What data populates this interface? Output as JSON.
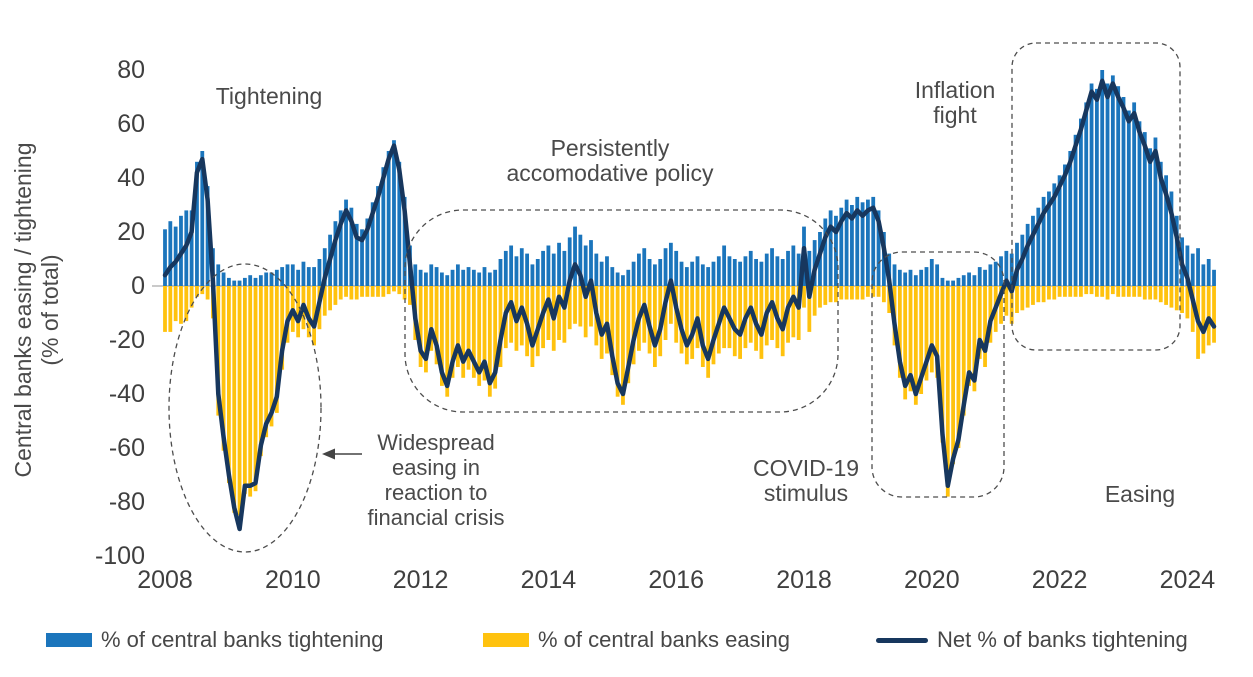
{
  "chart": {
    "y_axis": {
      "title_line1": "Central banks easing / tightening",
      "title_line2": "(% of total)",
      "ticks": [
        80,
        60,
        40,
        20,
        0,
        -20,
        -40,
        -60,
        -80,
        -100
      ]
    },
    "x_axis": {
      "ticks": [
        2008,
        2010,
        2012,
        2014,
        2016,
        2018,
        2020,
        2022,
        2024
      ]
    },
    "annotations": {
      "tightening": "Tightening",
      "accommodative": "Persistently\naccomodative policy",
      "financial_crisis": "Widespread\neasing in\nreaction to\nfinancial crisis",
      "covid": "COVID-19\nstimulus",
      "inflation": "Inflation\nfight",
      "easing": "Easing"
    }
  },
  "legend": [
    {
      "label": "% of central banks tightening",
      "color": "#1B75BC",
      "type": "bar"
    },
    {
      "label": "% of central banks easing",
      "color": "#FFC20E",
      "type": "bar"
    },
    {
      "label": "Net % of banks tightening",
      "color": "#17375E",
      "type": "line"
    }
  ],
  "chart_data": {
    "type": "bar",
    "subtype": "monthly bars with net line overlay",
    "x_start": "2008-01",
    "x_end": "2024-06",
    "x_frequency": "monthly",
    "ylim": [
      -100,
      80
    ],
    "grid": "zero-line only",
    "legend_position": "bottom",
    "series": [
      {
        "name": "% of central banks tightening",
        "type": "bar",
        "color": "#1B75BC",
        "values": [
          21,
          24,
          22,
          26,
          28,
          28,
          46,
          50,
          37,
          14,
          8,
          5,
          3,
          2,
          2,
          3,
          4,
          3,
          4,
          5,
          5,
          6,
          7,
          8,
          8,
          6,
          9,
          7,
          7,
          10,
          14,
          19,
          24,
          28,
          32,
          29,
          23,
          21,
          25,
          31,
          37,
          44,
          50,
          54,
          46,
          33,
          15,
          8,
          6,
          5,
          8,
          7,
          5,
          4,
          6,
          8,
          6,
          7,
          6,
          5,
          7,
          5,
          6,
          10,
          13,
          15,
          11,
          14,
          12,
          8,
          10,
          13,
          15,
          12,
          16,
          13,
          18,
          22,
          19,
          15,
          17,
          12,
          9,
          11,
          7,
          5,
          4,
          6,
          9,
          12,
          14,
          10,
          8,
          10,
          14,
          16,
          13,
          9,
          7,
          9,
          11,
          8,
          7,
          9,
          11,
          15,
          11,
          10,
          9,
          11,
          13,
          10,
          9,
          12,
          14,
          11,
          10,
          13,
          15,
          12,
          22,
          13,
          17,
          20,
          25,
          28,
          26,
          29,
          32,
          30,
          33,
          31,
          32,
          33,
          28,
          20,
          12,
          8,
          6,
          5,
          6,
          4,
          6,
          7,
          10,
          8,
          3,
          2,
          2,
          3,
          4,
          5,
          4,
          7,
          6,
          8,
          9,
          11,
          13,
          12,
          16,
          19,
          23,
          26,
          29,
          33,
          35,
          38,
          41,
          45,
          50,
          56,
          62,
          68,
          75,
          73,
          80,
          75,
          78,
          74,
          70,
          65,
          68,
          61,
          57,
          51,
          55,
          46,
          41,
          35,
          26,
          18,
          15,
          12,
          14,
          8,
          10,
          6
        ]
      },
      {
        "name": "% of central banks easing",
        "type": "bar",
        "color": "#FFC20E",
        "values": [
          -17,
          -17,
          -13,
          -14,
          -13,
          -8,
          -4,
          -3,
          -5,
          -12,
          -48,
          -61,
          -73,
          -84,
          -85,
          -77,
          -78,
          -76,
          -63,
          -56,
          -52,
          -47,
          -31,
          -21,
          -17,
          -19,
          -16,
          -19,
          -22,
          -16,
          -11,
          -9,
          -7,
          -5,
          -4,
          -5,
          -5,
          -4,
          -4,
          -4,
          -4,
          -4,
          -3,
          -2,
          -3,
          -5,
          -7,
          -20,
          -30,
          -32,
          -24,
          -29,
          -37,
          -41,
          -34,
          -30,
          -34,
          -31,
          -34,
          -37,
          -35,
          -41,
          -38,
          -30,
          -23,
          -21,
          -24,
          -22,
          -26,
          -30,
          -26,
          -23,
          -20,
          -24,
          -20,
          -21,
          -16,
          -14,
          -15,
          -19,
          -15,
          -22,
          -27,
          -25,
          -33,
          -41,
          -44,
          -36,
          -29,
          -24,
          -21,
          -25,
          -30,
          -26,
          -20,
          -14,
          -21,
          -25,
          -29,
          -27,
          -23,
          -30,
          -34,
          -29,
          -25,
          -23,
          -23,
          -26,
          -27,
          -23,
          -21,
          -24,
          -27,
          -22,
          -20,
          -23,
          -26,
          -21,
          -19,
          -20,
          -8,
          -17,
          -11,
          -8,
          -7,
          -6,
          -6,
          -5,
          -5,
          -5,
          -5,
          -5,
          -4,
          -4,
          -4,
          -6,
          -10,
          -22,
          -34,
          -42,
          -39,
          -44,
          -40,
          -35,
          -32,
          -34,
          -58,
          -78,
          -66,
          -60,
          -48,
          -37,
          -39,
          -27,
          -30,
          -21,
          -17,
          -14,
          -11,
          -14,
          -10,
          -9,
          -8,
          -7,
          -6,
          -6,
          -5,
          -5,
          -4,
          -4,
          -4,
          -4,
          -4,
          -3,
          -3,
          -4,
          -4,
          -5,
          -3,
          -4,
          -4,
          -4,
          -4,
          -4,
          -5,
          -5,
          -5,
          -6,
          -7,
          -8,
          -9,
          -10,
          -12,
          -17,
          -27,
          -25,
          -22,
          -21
        ]
      },
      {
        "name": "Net % of banks tightening",
        "type": "line",
        "color": "#17375E",
        "values": [
          4,
          7,
          9,
          12,
          15,
          20,
          42,
          47,
          32,
          2,
          -40,
          -56,
          -70,
          -82,
          -90,
          -74,
          -74,
          -73,
          -59,
          -51,
          -47,
          -41,
          -24,
          -13,
          -9,
          -13,
          -7,
          -12,
          -15,
          -6,
          3,
          10,
          17,
          23,
          28,
          24,
          18,
          17,
          21,
          27,
          33,
          40,
          47,
          52,
          43,
          28,
          8,
          -12,
          -24,
          -27,
          -16,
          -22,
          -32,
          -37,
          -28,
          -22,
          -28,
          -24,
          -28,
          -32,
          -28,
          -36,
          -32,
          -20,
          -10,
          -6,
          -13,
          -8,
          -14,
          -22,
          -16,
          -10,
          -5,
          -12,
          -4,
          -8,
          2,
          8,
          4,
          -4,
          2,
          -10,
          -18,
          -14,
          -26,
          -36,
          -40,
          -30,
          -20,
          -12,
          -7,
          -15,
          -22,
          -16,
          -6,
          2,
          -8,
          -16,
          -22,
          -18,
          -12,
          -22,
          -27,
          -20,
          -14,
          -8,
          -12,
          -16,
          -18,
          -12,
          -8,
          -14,
          -18,
          -10,
          -6,
          -12,
          -16,
          -8,
          -4,
          -8,
          14,
          -4,
          6,
          12,
          18,
          22,
          20,
          24,
          27,
          25,
          28,
          26,
          28,
          29,
          24,
          14,
          2,
          -14,
          -28,
          -37,
          -33,
          -40,
          -34,
          -28,
          -22,
          -26,
          -55,
          -74,
          -64,
          -57,
          -44,
          -32,
          -35,
          -20,
          -24,
          -13,
          -8,
          -3,
          2,
          -2,
          6,
          10,
          15,
          19,
          23,
          27,
          30,
          33,
          37,
          41,
          46,
          52,
          58,
          65,
          72,
          69,
          76,
          70,
          75,
          70,
          66,
          61,
          64,
          57,
          52,
          46,
          50,
          40,
          34,
          27,
          18,
          8,
          3,
          -5,
          -13,
          -17,
          -12,
          -15
        ]
      }
    ]
  }
}
